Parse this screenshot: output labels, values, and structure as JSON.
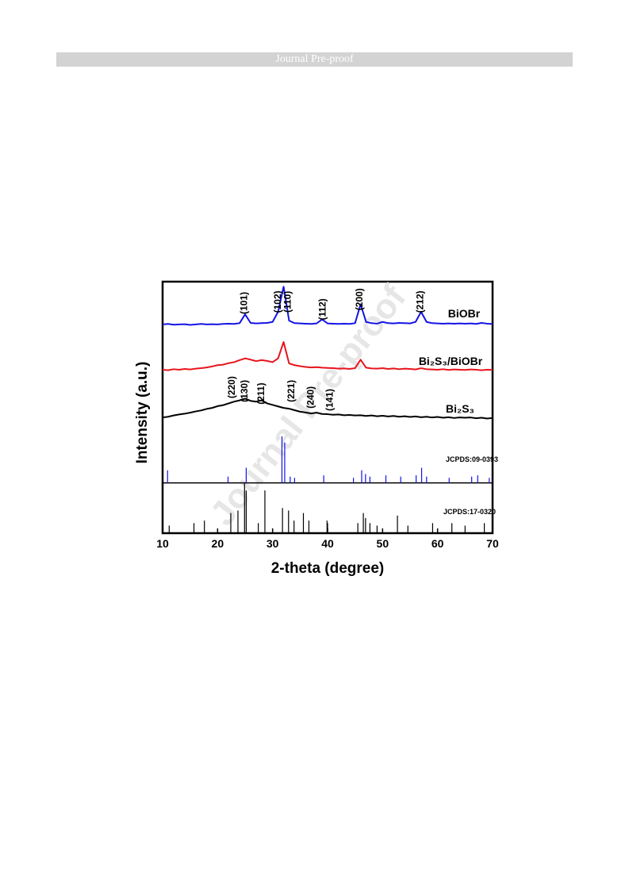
{
  "header": {
    "title": "Journal Pre-proof"
  },
  "watermark": "Journal Pre-proof",
  "chart_data": {
    "type": "line",
    "xlabel": "2-theta (degree)",
    "ylabel": "Intensity (a.u.)",
    "xlim": [
      10,
      70
    ],
    "xticks": [
      10,
      20,
      30,
      40,
      50,
      60,
      70
    ],
    "ylim": [
      0,
      100
    ],
    "panel_divider_y": 20,
    "x": [
      10,
      11,
      12,
      13,
      14,
      15,
      16,
      17,
      18,
      19,
      20,
      21,
      22,
      23,
      24,
      25,
      26,
      27,
      28,
      29,
      30,
      31,
      32,
      33,
      34,
      35,
      36,
      37,
      38,
      39,
      40,
      41,
      42,
      43,
      44,
      45,
      46,
      47,
      48,
      49,
      50,
      51,
      52,
      53,
      54,
      55,
      56,
      57,
      58,
      59,
      60,
      61,
      62,
      63,
      64,
      65,
      66,
      67,
      68,
      69,
      70
    ],
    "series": [
      {
        "name": "BiOBr",
        "color": "#1414e6",
        "style": "line",
        "values": [
          83,
          83.2,
          82.9,
          83,
          83.1,
          82.8,
          83,
          83.2,
          83,
          83.1,
          83,
          83.2,
          83.3,
          83.2,
          83.5,
          87,
          83.6,
          83.4,
          83.5,
          83.6,
          84,
          88,
          98,
          84.5,
          83.5,
          83.4,
          83.3,
          83.2,
          83.4,
          85,
          83.4,
          83.3,
          83.2,
          83.3,
          83.2,
          83.5,
          91,
          84,
          83.5,
          83.3,
          84,
          83.5,
          83.4,
          83.6,
          83.5,
          83.4,
          84,
          88,
          84,
          83.5,
          83.4,
          83.3,
          83.4,
          83.3,
          83.4,
          83.3,
          83.4,
          83.2,
          83.6,
          83.3,
          83.2
        ]
      },
      {
        "name": "Bi₂S₃/BiOBr",
        "color": "#e8141c",
        "style": "line",
        "values": [
          65,
          64.8,
          65.2,
          65,
          65.3,
          65.1,
          65.4,
          65.6,
          65.9,
          66.3,
          66.8,
          67,
          67.6,
          68,
          68.8,
          69.5,
          69,
          68.4,
          68.8,
          68.5,
          68,
          69.5,
          76,
          67.5,
          66.8,
          66.4,
          66.1,
          65.9,
          66,
          65.8,
          65.7,
          65.6,
          65.4,
          65.5,
          65.3,
          65.6,
          69,
          65.8,
          65.5,
          65.4,
          65.6,
          65.3,
          65.5,
          65.2,
          65.4,
          65.3,
          65.1,
          65.6,
          65.2,
          65.1,
          65,
          65.2,
          64.9,
          65.1,
          65,
          64.9,
          65.1,
          65,
          64.8,
          65,
          64.9
        ]
      },
      {
        "name": "Bi₂S₃",
        "color": "#000000",
        "style": "line",
        "values": [
          46,
          46.3,
          46.8,
          47.2,
          47.5,
          47.9,
          48.4,
          48.8,
          49.4,
          49.8,
          50.5,
          50.9,
          51.6,
          52.3,
          52.8,
          53.5,
          52.6,
          52.3,
          52.8,
          51.6,
          51,
          50.4,
          49.8,
          49.5,
          48.9,
          48.3,
          48,
          47.6,
          47.9,
          47.4,
          47.3,
          47.1,
          47.2,
          46.9,
          47,
          46.8,
          46.9,
          46.6,
          46.8,
          46.5,
          46.7,
          46.4,
          46.6,
          46.3,
          46.5,
          46.2,
          46.4,
          46.1,
          46.3,
          46,
          46.2,
          45.9,
          46.1,
          45.8,
          46,
          45.9,
          46,
          45.7,
          45.9,
          45.6,
          45.8
        ]
      },
      {
        "name": "JCPDS:09-0393",
        "color": "#1414e6",
        "style": "sticks",
        "base": 20,
        "x": [
          10.9,
          21.9,
          25.2,
          31.7,
          32.2,
          33.2,
          34.0,
          39.3,
          44.7,
          46.2,
          46.9,
          47.7,
          50.6,
          53.3,
          56.1,
          57.1,
          58.0,
          62.1,
          66.2,
          67.3,
          69.4
        ],
        "values": [
          25,
          22.5,
          26,
          38.5,
          36,
          22.5,
          22,
          23,
          22,
          25,
          23.5,
          22.5,
          23,
          22.5,
          23,
          26,
          22.5,
          22,
          22.5,
          23,
          22
        ]
      },
      {
        "name": "JCPDS:17-0320",
        "color": "#000000",
        "style": "sticks",
        "base": 0,
        "x": [
          11.2,
          15.7,
          17.6,
          22.4,
          23.7,
          24.9,
          25.2,
          27.4,
          28.6,
          31.8,
          32.9,
          33.9,
          35.6,
          36.6,
          39.9,
          40.0,
          45.5,
          46.5,
          46.9,
          47.7,
          49.0,
          52.7,
          54.6,
          59.1,
          62.6,
          65.0,
          68.5
        ],
        "values": [
          3,
          4,
          5,
          8,
          9,
          20,
          17,
          4,
          17,
          10,
          9,
          5,
          8,
          5,
          5,
          4,
          4,
          8,
          6,
          4,
          3,
          7,
          3,
          4,
          4,
          3,
          4
        ]
      }
    ],
    "annotations": [
      {
        "text": "(101)",
        "x": 24.9,
        "y": 91.5
      },
      {
        "text": "(102)",
        "x": 31.0,
        "y": 92
      },
      {
        "text": "(110)",
        "x": 32.8,
        "y": 92
      },
      {
        "text": "(112)",
        "x": 39.2,
        "y": 89
      },
      {
        "text": "(200)",
        "x": 45.9,
        "y": 93
      },
      {
        "text": "(212)",
        "x": 56.9,
        "y": 92
      },
      {
        "text": "(220)",
        "x": 22.7,
        "y": 58
      },
      {
        "text": "(130)",
        "x": 25.0,
        "y": 56.5
      },
      {
        "text": "(211)",
        "x": 28.0,
        "y": 55.5
      },
      {
        "text": "(221)",
        "x": 33.5,
        "y": 56.5
      },
      {
        "text": "(240)",
        "x": 37.0,
        "y": 54
      },
      {
        "text": "(141)",
        "x": 40.5,
        "y": 53
      }
    ]
  }
}
